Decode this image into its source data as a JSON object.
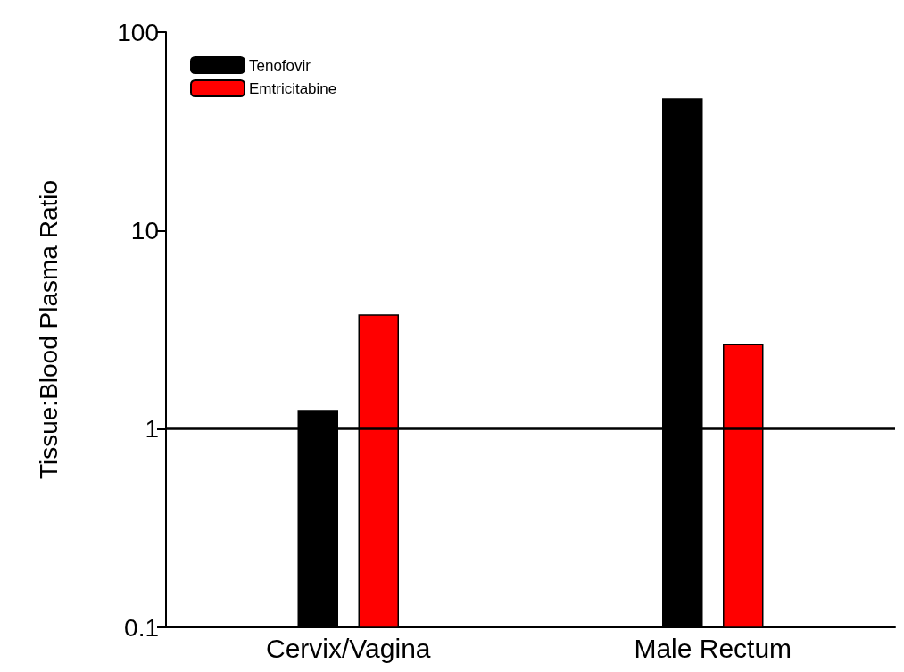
{
  "chart_data": {
    "type": "bar",
    "ylabel": "Tissue:Blood Plasma Ratio",
    "categories": [
      "Cervix/Vagina",
      "Male Rectum"
    ],
    "series": [
      {
        "name": "Tenofovir",
        "color": "#000000",
        "values": [
          1.24,
          46
        ]
      },
      {
        "name": "Emtricitabine",
        "color": "#ff0000",
        "values": [
          3.75,
          2.66
        ]
      }
    ],
    "log": "y",
    "ylim": [
      0.1,
      100
    ],
    "yticks": [
      0.1,
      1,
      10,
      100
    ],
    "grid": false,
    "legend": "top left",
    "ref_lines": [
      {
        "axis": "y",
        "value": 1,
        "color": "#000000"
      }
    ]
  }
}
